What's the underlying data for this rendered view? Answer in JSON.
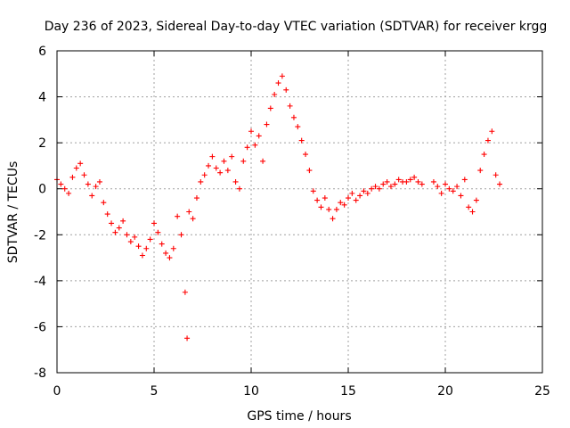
{
  "chart_data": {
    "type": "scatter",
    "title": "Day 236 of 2023, Sidereal Day-to-day VTEC variation (SDTVAR) for receiver krgg",
    "xlabel": "GPS time / hours",
    "ylabel": "SDTVAR / TECUs",
    "xlim": [
      0,
      25
    ],
    "ylim": [
      -8,
      6
    ],
    "xticks": [
      0,
      5,
      10,
      15,
      20,
      25
    ],
    "yticks": [
      -8,
      -6,
      -4,
      -2,
      0,
      2,
      4,
      6
    ],
    "grid": true,
    "marker": "+",
    "color": "#ff0000",
    "series": [
      {
        "name": "SDTVAR",
        "x": [
          0.0,
          0.2,
          0.4,
          0.6,
          0.8,
          1.0,
          1.2,
          1.4,
          1.6,
          1.8,
          2.0,
          2.2,
          2.4,
          2.6,
          2.8,
          3.0,
          3.2,
          3.4,
          3.6,
          3.8,
          4.0,
          4.2,
          4.4,
          4.6,
          4.8,
          5.0,
          5.2,
          5.4,
          5.6,
          5.8,
          6.0,
          6.2,
          6.4,
          6.6,
          6.7,
          6.8,
          7.0,
          7.2,
          7.4,
          7.6,
          7.8,
          8.0,
          8.2,
          8.4,
          8.6,
          8.8,
          9.0,
          9.2,
          9.4,
          9.6,
          9.8,
          10.0,
          10.2,
          10.4,
          10.6,
          10.8,
          11.0,
          11.2,
          11.4,
          11.6,
          11.8,
          12.0,
          12.2,
          12.4,
          12.6,
          12.8,
          13.0,
          13.2,
          13.4,
          13.6,
          13.8,
          14.0,
          14.2,
          14.4,
          14.6,
          14.8,
          15.0,
          15.2,
          15.4,
          15.6,
          15.8,
          16.0,
          16.2,
          16.4,
          16.6,
          16.8,
          17.0,
          17.2,
          17.4,
          17.6,
          17.8,
          18.0,
          18.2,
          18.4,
          18.6,
          18.8,
          19.4,
          19.6,
          19.8,
          20.0,
          20.2,
          20.4,
          20.6,
          20.8,
          21.0,
          21.2,
          21.4,
          21.6,
          21.8,
          22.0,
          22.2,
          22.4,
          22.6,
          22.8
        ],
        "y": [
          0.4,
          0.2,
          0.0,
          -0.2,
          0.5,
          0.9,
          1.1,
          0.6,
          0.2,
          -0.3,
          0.1,
          0.3,
          -0.6,
          -1.1,
          -1.5,
          -1.9,
          -1.7,
          -1.4,
          -2.0,
          -2.3,
          -2.1,
          -2.5,
          -2.9,
          -2.6,
          -2.2,
          -1.5,
          -1.9,
          -2.4,
          -2.8,
          -3.0,
          -2.6,
          -1.2,
          -2.0,
          -4.5,
          -6.5,
          -1.0,
          -1.3,
          -0.4,
          0.3,
          0.6,
          1.0,
          1.4,
          0.9,
          0.7,
          1.2,
          0.8,
          1.4,
          0.3,
          0.0,
          1.2,
          1.8,
          2.5,
          1.9,
          2.3,
          1.2,
          2.8,
          3.5,
          4.1,
          4.6,
          4.9,
          4.3,
          3.6,
          3.1,
          2.7,
          2.1,
          1.5,
          0.8,
          -0.1,
          -0.5,
          -0.8,
          -0.4,
          -0.9,
          -1.3,
          -0.9,
          -0.6,
          -0.7,
          -0.4,
          -0.2,
          -0.5,
          -0.3,
          -0.1,
          -0.2,
          0.0,
          0.1,
          0.0,
          0.2,
          0.3,
          0.1,
          0.2,
          0.4,
          0.3,
          0.3,
          0.4,
          0.5,
          0.3,
          0.2,
          0.3,
          0.1,
          -0.2,
          0.2,
          0.0,
          -0.1,
          0.1,
          -0.3,
          0.4,
          -0.8,
          -1.0,
          -0.5,
          0.8,
          1.5,
          2.1,
          2.5,
          0.6,
          0.2
        ]
      }
    ]
  }
}
